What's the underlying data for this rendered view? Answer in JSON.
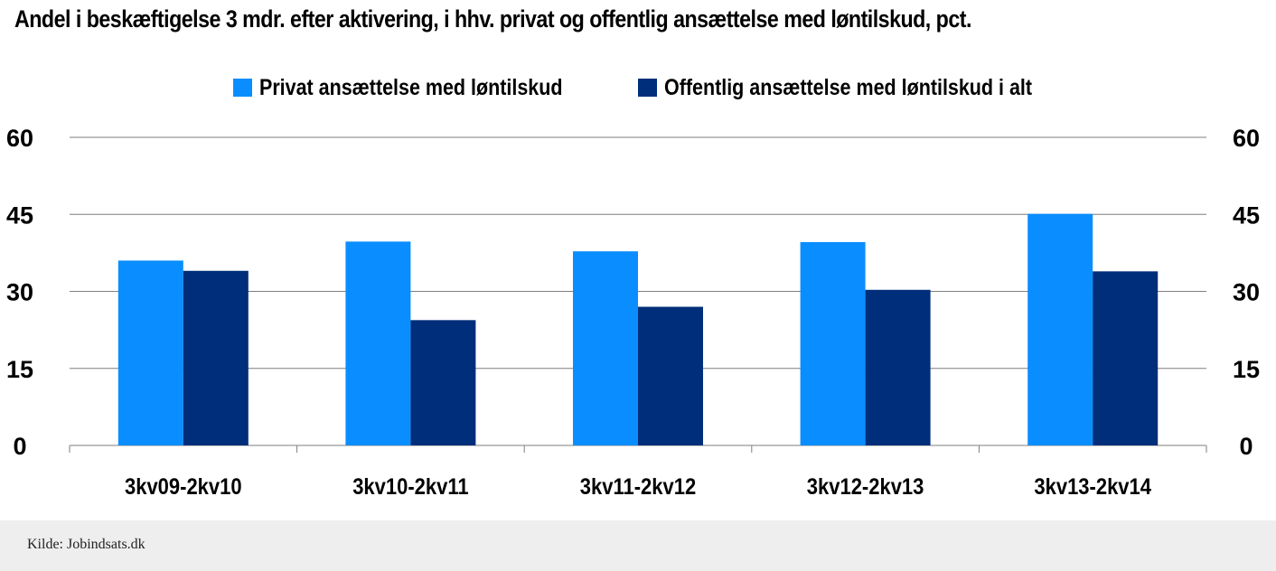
{
  "title": "Andel i beskæftigelse 3 mdr. efter aktivering, i hhv. privat og offentlig ansættelse med løntilskud, pct.",
  "source": "Kilde: Jobindsats.dk",
  "colors": {
    "series1": "#0a8eff",
    "series2": "#002e7a",
    "grid": "#7f7f7f"
  },
  "chart_data": {
    "type": "bar",
    "categories": [
      "3kv09-2kv10",
      "3kv10-2kv11",
      "3kv11-2kv12",
      "3kv12-2kv13",
      "3kv13-2kv14"
    ],
    "series": [
      {
        "name": "Privat ansættelse med løntilskud",
        "values": [
          36.0,
          39.7,
          37.8,
          39.6,
          45.1
        ]
      },
      {
        "name": "Offentlig ansættelse med løntilskud i alt",
        "values": [
          34.0,
          24.4,
          27.0,
          30.3,
          33.9
        ]
      }
    ],
    "ylim": [
      0,
      60
    ],
    "yticks": [
      0,
      15,
      30,
      45,
      60
    ],
    "secondary_axis": true,
    "grid": true,
    "legend": "top"
  }
}
